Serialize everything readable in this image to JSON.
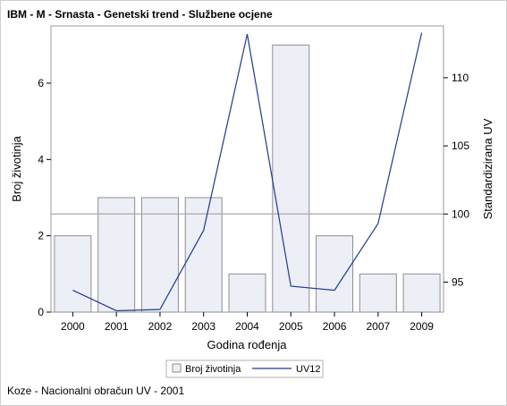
{
  "chart_data": {
    "type": "bar",
    "title": "IBM - M - Srnasta - Genetski trend - Službene ocjene",
    "footnote": "Koze - Nacionalni obračun UV - 2001",
    "xlabel": "Godina rođenja",
    "ylabel_left": "Broj životinja",
    "ylabel_right": "Standardizirana UV",
    "categories": [
      "2000",
      "2001",
      "2002",
      "2003",
      "2004",
      "2005",
      "2006",
      "2007",
      "2009"
    ],
    "series": [
      {
        "name": "Broj životinja",
        "type": "bar",
        "axis": "left",
        "values": [
          2,
          3,
          3,
          3,
          1,
          7,
          2,
          1,
          1
        ]
      },
      {
        "name": "UV12",
        "type": "line",
        "axis": "right",
        "values": [
          94.4,
          92.9,
          93.0,
          98.8,
          113.2,
          94.7,
          94.4,
          99.3,
          113.3
        ]
      }
    ],
    "ylim_left": [
      0,
      7.5
    ],
    "yticks_left": [
      0,
      2,
      4,
      6
    ],
    "ylim_right": [
      92.8,
      113.8
    ],
    "yticks_right": [
      95,
      100,
      105,
      110
    ],
    "reference_line_right": 100,
    "legend": {
      "position": "bottom",
      "entries": [
        "Broj životinja",
        "UV12"
      ]
    },
    "colors": {
      "bar_fill": "#eceff5",
      "bar_stroke": "#8c8c9a",
      "line": "#1f3c8c",
      "refline": "#a9a9a9"
    },
    "grid": false
  }
}
